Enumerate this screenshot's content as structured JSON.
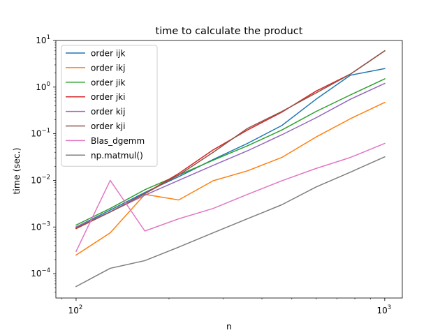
{
  "chart_data": {
    "type": "line",
    "title": "time to calculate the product",
    "xlabel": "n",
    "ylabel": "time (sec.)",
    "xscale": "log",
    "yscale": "log",
    "xlim": [
      86,
      1140
    ],
    "ylim": [
      3e-05,
      10
    ],
    "xticks": [
      {
        "value": 100,
        "base": "10",
        "exp": "2"
      },
      {
        "value": 1000,
        "base": "10",
        "exp": "3"
      }
    ],
    "yticks": [
      {
        "value": 0.0001,
        "base": "10",
        "exp": "−4"
      },
      {
        "value": 0.001,
        "base": "10",
        "exp": "−3"
      },
      {
        "value": 0.01,
        "base": "10",
        "exp": "−2"
      },
      {
        "value": 0.1,
        "base": "10",
        "exp": "−1"
      },
      {
        "value": 1,
        "base": "10",
        "exp": "0"
      },
      {
        "value": 10,
        "base": "10",
        "exp": "1"
      }
    ],
    "grid": false,
    "legend_position": "upper-left",
    "x": [
      100,
      129,
      167,
      215,
      278,
      359,
      464,
      599,
      774,
      1000
    ],
    "series": [
      {
        "name": "order ijk",
        "color": "#1f77b4",
        "values": [
          0.001,
          0.0023,
          0.0055,
          0.012,
          0.028,
          0.062,
          0.15,
          0.55,
          1.8,
          2.5
        ]
      },
      {
        "name": "order ikj",
        "color": "#ff7f0e",
        "values": [
          0.00025,
          0.00075,
          0.005,
          0.0038,
          0.0098,
          0.016,
          0.031,
          0.085,
          0.21,
          0.47
        ]
      },
      {
        "name": "order jik",
        "color": "#2ca02c",
        "values": [
          0.0011,
          0.0025,
          0.0063,
          0.013,
          0.027,
          0.055,
          0.12,
          0.3,
          0.68,
          1.5
        ]
      },
      {
        "name": "order jki",
        "color": "#d62728",
        "values": [
          0.00092,
          0.0021,
          0.0052,
          0.014,
          0.045,
          0.12,
          0.29,
          0.82,
          1.9,
          6.0
        ]
      },
      {
        "name": "order kij",
        "color": "#9467bd",
        "values": [
          0.001,
          0.0021,
          0.0048,
          0.01,
          0.021,
          0.043,
          0.095,
          0.22,
          0.55,
          1.2
        ]
      },
      {
        "name": "order kji",
        "color": "#8c564b",
        "values": [
          0.00095,
          0.0021,
          0.0052,
          0.013,
          0.04,
          0.13,
          0.3,
          0.75,
          1.9,
          6.0
        ]
      },
      {
        "name": "Blas_dgemm",
        "color": "#e377c2",
        "values": [
          0.0003,
          0.01,
          0.00082,
          0.0015,
          0.0025,
          0.005,
          0.0098,
          0.018,
          0.031,
          0.062
        ]
      },
      {
        "name": "np.matmul()",
        "color": "#7f7f7f",
        "values": [
          5.3e-05,
          0.00013,
          0.00019,
          0.00037,
          0.00075,
          0.0015,
          0.003,
          0.0072,
          0.015,
          0.032
        ]
      }
    ]
  }
}
